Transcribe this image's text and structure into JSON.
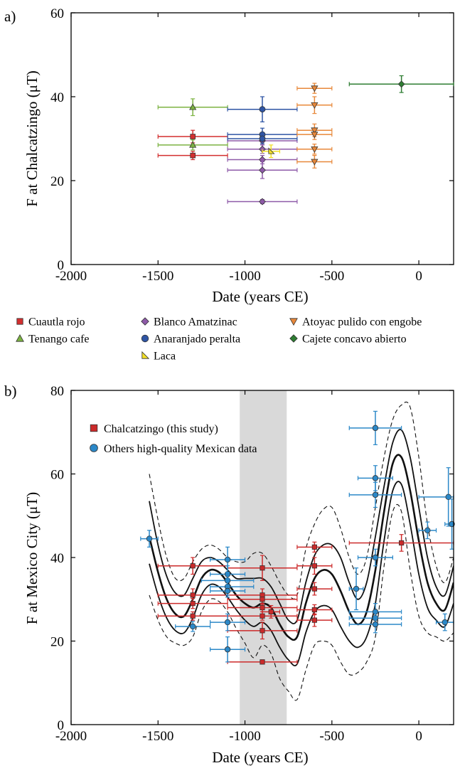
{
  "figure": {
    "panel_a_label": "a)",
    "panel_b_label": "b)"
  },
  "colors": {
    "cuautla": "#d32f2f",
    "tenango": "#7cb342",
    "blanco": "#8e5aa8",
    "anaranjado": "#2f55a4",
    "laca": "#f2e027",
    "atoyac": "#e8883a",
    "cajete": "#2e7d32",
    "chalc_b": "#cc2a2a",
    "others_b": "#2b88c8",
    "band": "#d9d9d9"
  },
  "chart_data": [
    {
      "type": "scatter",
      "xlabel": "Date (years CE)",
      "ylabel": "F at Chalcatzingo (μT)",
      "xlim": [
        -2000,
        200
      ],
      "ylim": [
        0,
        60
      ],
      "xticks": [
        -2000,
        -1500,
        -1000,
        -500,
        0
      ],
      "yticks": [
        0,
        20,
        40,
        60
      ],
      "xtick_labels": [
        "-2000",
        "-1500",
        "-1000",
        "-500",
        "0"
      ],
      "ytick_labels": [
        "0",
        "20",
        "40",
        "60"
      ],
      "legend": [
        {
          "key": "cuautla",
          "label": "Cuautla rojo",
          "marker": "square"
        },
        {
          "key": "tenango",
          "label": "Tenango cafe",
          "marker": "triangle"
        },
        {
          "key": "blanco",
          "label": "Blanco Amatzinac",
          "marker": "diamond"
        },
        {
          "key": "anaranjado",
          "label": "Anaranjado peralta",
          "marker": "circle"
        },
        {
          "key": "laca",
          "label": "Laca",
          "marker": "halftri"
        },
        {
          "key": "atoyac",
          "label": "Atoyac pulido con engobe",
          "marker": "triangle-down"
        },
        {
          "key": "cajete",
          "label": "Cajete concavo abierto",
          "marker": "diamond"
        }
      ],
      "series": [
        {
          "key": "cuautla",
          "name": "Cuautla rojo",
          "marker": "square",
          "points": [
            {
              "x": -1300,
              "xmin": -1500,
              "xmax": -1100,
              "y": 30.5,
              "yerr": 1.5
            },
            {
              "x": -1300,
              "xmin": -1500,
              "xmax": -1100,
              "y": 26.0,
              "yerr": 1.0
            }
          ]
        },
        {
          "key": "tenango",
          "name": "Tenango cafe",
          "marker": "triangle",
          "points": [
            {
              "x": -1300,
              "xmin": -1500,
              "xmax": -1100,
              "y": 37.5,
              "yerr": 2.0
            },
            {
              "x": -1300,
              "xmin": -1500,
              "xmax": -1100,
              "y": 28.5,
              "yerr": 1.2
            }
          ]
        },
        {
          "key": "blanco",
          "name": "Blanco Amatzinac",
          "marker": "diamond",
          "points": [
            {
              "x": -900,
              "xmin": -1100,
              "xmax": -700,
              "y": 29.5,
              "yerr": 1.0
            },
            {
              "x": -900,
              "xmin": -1100,
              "xmax": -700,
              "y": 27.5,
              "yerr": 1.0
            },
            {
              "x": -900,
              "xmin": -1100,
              "xmax": -700,
              "y": 25.0,
              "yerr": 1.0
            },
            {
              "x": -900,
              "xmin": -1100,
              "xmax": -700,
              "y": 22.5,
              "yerr": 2.0
            },
            {
              "x": -900,
              "xmin": -1100,
              "xmax": -700,
              "y": 15.0,
              "yerr": 0.5
            }
          ]
        },
        {
          "key": "anaranjado",
          "name": "Anaranjado peralta",
          "marker": "circle",
          "points": [
            {
              "x": -900,
              "xmin": -1100,
              "xmax": -700,
              "y": 37.0,
              "yerr": 3.0
            },
            {
              "x": -900,
              "xmin": -1100,
              "xmax": -700,
              "y": 31.0,
              "yerr": 1.5
            },
            {
              "x": -900,
              "xmin": -1100,
              "xmax": -700,
              "y": 30.0,
              "yerr": 1.2
            }
          ]
        },
        {
          "key": "laca",
          "name": "Laca",
          "marker": "halftri",
          "points": [
            {
              "x": -850,
              "xmin": -900,
              "xmax": -800,
              "y": 27.0,
              "yerr": 1.5
            }
          ]
        },
        {
          "key": "atoyac",
          "name": "Atoyac pulido con engobe",
          "marker": "triangle-down",
          "points": [
            {
              "x": -600,
              "xmin": -700,
              "xmax": -500,
              "y": 42.0,
              "yerr": 1.2
            },
            {
              "x": -600,
              "xmin": -700,
              "xmax": -500,
              "y": 38.0,
              "yerr": 2.0
            },
            {
              "x": -600,
              "xmin": -700,
              "xmax": -500,
              "y": 32.0,
              "yerr": 1.5
            },
            {
              "x": -600,
              "xmin": -700,
              "xmax": -500,
              "y": 31.0,
              "yerr": 1.2
            },
            {
              "x": -600,
              "xmin": -700,
              "xmax": -500,
              "y": 27.5,
              "yerr": 1.2
            },
            {
              "x": -600,
              "xmin": -700,
              "xmax": -500,
              "y": 24.5,
              "yerr": 1.5
            }
          ]
        },
        {
          "key": "cajete",
          "name": "Cajete concavo abierto",
          "marker": "diamond",
          "points": [
            {
              "x": -100,
              "xmin": -400,
              "xmax": 200,
              "y": 43.0,
              "yerr": 2.0
            }
          ]
        }
      ]
    },
    {
      "type": "scatter",
      "xlabel": "Date (years CE)",
      "ylabel": "F at Mexico City (μT)",
      "xlim": [
        -2000,
        200
      ],
      "ylim": [
        0,
        80
      ],
      "xticks": [
        -2000,
        -1500,
        -1000,
        -500,
        0
      ],
      "yticks": [
        0,
        20,
        40,
        60,
        80
      ],
      "xtick_labels": [
        "-2000",
        "-1500",
        "-1000",
        "-500",
        "0"
      ],
      "ytick_labels": [
        "0",
        "20",
        "40",
        "60",
        "80"
      ],
      "shaded_band": {
        "x0": -1030,
        "x1": -760
      },
      "legend": [
        {
          "key": "chalc_b",
          "label": "Chalcatzingo (this study)",
          "marker": "square"
        },
        {
          "key": "others_b",
          "label": "Others high-quality Mexican data",
          "marker": "circle"
        }
      ],
      "series": [
        {
          "key": "chalc_b",
          "name": "Chalcatzingo (this study)",
          "marker": "square",
          "points": [
            {
              "x": -1300,
              "xmin": -1500,
              "xmax": -1100,
              "y": 38.0,
              "yerr": 2.0
            },
            {
              "x": -1300,
              "xmin": -1500,
              "xmax": -1100,
              "y": 31.0,
              "yerr": 1.5
            },
            {
              "x": -1300,
              "xmin": -1500,
              "xmax": -1100,
              "y": 29.0,
              "yerr": 1.2
            },
            {
              "x": -1300,
              "xmin": -1500,
              "xmax": -1100,
              "y": 26.0,
              "yerr": 1.0
            },
            {
              "x": -900,
              "xmin": -1100,
              "xmax": -700,
              "y": 37.5,
              "yerr": 3.0
            },
            {
              "x": -900,
              "xmin": -1100,
              "xmax": -700,
              "y": 31.0,
              "yerr": 1.5
            },
            {
              "x": -900,
              "xmin": -1100,
              "xmax": -700,
              "y": 30.0,
              "yerr": 1.2
            },
            {
              "x": -900,
              "xmin": -1100,
              "xmax": -700,
              "y": 28.0,
              "yerr": 1.0
            },
            {
              "x": -900,
              "xmin": -1100,
              "xmax": -700,
              "y": 26.0,
              "yerr": 1.0
            },
            {
              "x": -900,
              "xmin": -1100,
              "xmax": -700,
              "y": 22.5,
              "yerr": 2.0
            },
            {
              "x": -900,
              "xmin": -1100,
              "xmax": -700,
              "y": 15.0,
              "yerr": 0.5
            },
            {
              "x": -850,
              "xmin": -900,
              "xmax": -800,
              "y": 27.0,
              "yerr": 1.5
            },
            {
              "x": -600,
              "xmin": -700,
              "xmax": -500,
              "y": 42.5,
              "yerr": 1.2
            },
            {
              "x": -600,
              "xmin": -700,
              "xmax": -500,
              "y": 38.0,
              "yerr": 2.0
            },
            {
              "x": -600,
              "xmin": -700,
              "xmax": -500,
              "y": 32.5,
              "yerr": 1.5
            },
            {
              "x": -600,
              "xmin": -700,
              "xmax": -500,
              "y": 27.5,
              "yerr": 1.2
            },
            {
              "x": -600,
              "xmin": -700,
              "xmax": -500,
              "y": 25.0,
              "yerr": 1.5
            },
            {
              "x": -100,
              "xmin": -400,
              "xmax": 200,
              "y": 43.5,
              "yerr": 2.0
            }
          ]
        },
        {
          "key": "others_b",
          "name": "Others high-quality Mexican data",
          "marker": "circle",
          "points": [
            {
              "x": -1550,
              "xmin": -1600,
              "xmax": -1500,
              "y": 44.5,
              "yerr": 2.0
            },
            {
              "x": -1300,
              "xmin": -1400,
              "xmax": -1200,
              "y": 23.5,
              "yerr": 1.2
            },
            {
              "x": -1100,
              "xmin": -1200,
              "xmax": -1000,
              "y": 39.5,
              "yerr": 3.0
            },
            {
              "x": -1100,
              "xmin": -1200,
              "xmax": -1000,
              "y": 36.0,
              "yerr": 2.0
            },
            {
              "x": -1100,
              "xmin": -1250,
              "xmax": -950,
              "y": 34.5,
              "yerr": 2.0
            },
            {
              "x": -1100,
              "xmin": -1200,
              "xmax": -950,
              "y": 33.0,
              "yerr": 2.0
            },
            {
              "x": -1100,
              "xmin": -1200,
              "xmax": -1000,
              "y": 32.0,
              "yerr": 1.5
            },
            {
              "x": -1100,
              "xmin": -1200,
              "xmax": -1000,
              "y": 24.5,
              "yerr": 2.0
            },
            {
              "x": -1100,
              "xmin": -1200,
              "xmax": -1000,
              "y": 18.0,
              "yerr": 3.0
            },
            {
              "x": -360,
              "xmin": -400,
              "xmax": -320,
              "y": 32.5,
              "yerr": 5.0
            },
            {
              "x": -250,
              "xmin": -400,
              "xmax": -100,
              "y": 71.0,
              "yerr": 4.0
            },
            {
              "x": -250,
              "xmin": -350,
              "xmax": -150,
              "y": 59.0,
              "yerr": 3.0
            },
            {
              "x": -250,
              "xmin": -400,
              "xmax": -100,
              "y": 55.0,
              "yerr": 3.0
            },
            {
              "x": -250,
              "xmin": -350,
              "xmax": -150,
              "y": 40.0,
              "yerr": 2.0
            },
            {
              "x": -250,
              "xmin": -400,
              "xmax": -100,
              "y": 27.0,
              "yerr": 2.0
            },
            {
              "x": -250,
              "xmin": -400,
              "xmax": -100,
              "y": 25.5,
              "yerr": 1.5
            },
            {
              "x": -250,
              "xmin": -400,
              "xmax": -100,
              "y": 24.0,
              "yerr": 2.0
            },
            {
              "x": 50,
              "xmin": 0,
              "xmax": 100,
              "y": 46.5,
              "yerr": 2.0
            },
            {
              "x": 170,
              "xmin": 0,
              "xmax": 200,
              "y": 54.5,
              "yerr": 7.0
            },
            {
              "x": 190,
              "xmin": 150,
              "xmax": 200,
              "y": 48.0,
              "yerr": 6.0
            },
            {
              "x": 150,
              "xmin": 100,
              "xmax": 200,
              "y": 24.5,
              "yerr": 2.0
            }
          ]
        }
      ],
      "curves": {
        "x": [
          -1550,
          -1500,
          -1450,
          -1400,
          -1350,
          -1300,
          -1250,
          -1200,
          -1150,
          -1100,
          -1050,
          -1000,
          -950,
          -900,
          -850,
          -800,
          -750,
          -700,
          -650,
          -600,
          -550,
          -500,
          -450,
          -400,
          -350,
          -300,
          -250,
          -200,
          -150,
          -100,
          -50,
          0,
          50,
          100,
          150,
          200
        ],
        "mean": [
          45,
          36.5,
          30,
          26.5,
          26,
          30,
          35,
          37,
          36.5,
          34,
          31,
          29,
          28,
          29,
          28,
          24,
          21,
          21,
          29,
          35,
          37,
          36,
          32,
          27,
          24,
          27,
          37,
          51,
          62.5,
          64,
          56,
          44,
          34,
          29,
          27.5,
          34
        ],
        "upper": [
          53.5,
          43,
          35.5,
          31.5,
          31,
          35,
          39,
          40,
          39,
          37,
          35,
          35,
          35,
          35,
          33,
          29,
          25,
          25,
          34,
          40.5,
          43,
          43,
          40,
          34,
          30,
          34,
          45,
          57,
          67.5,
          70.5,
          64,
          52,
          40,
          33,
          31,
          38
        ],
        "lower": [
          38.5,
          31,
          25.5,
          22.5,
          22,
          25.5,
          31,
          33.5,
          33,
          30.5,
          27.5,
          25,
          23.5,
          24.5,
          22.5,
          18.5,
          15.5,
          14.5,
          22,
          27,
          28.5,
          27.5,
          23.5,
          20,
          18.5,
          21,
          29,
          44,
          56,
          57.5,
          48,
          36,
          28,
          25,
          23.5,
          29
        ],
        "upper_dashed": [
          60,
          49,
          40,
          35,
          35,
          39,
          42,
          43,
          42,
          40,
          39,
          39,
          41,
          41,
          38,
          34,
          31,
          31,
          42,
          48,
          51.5,
          52,
          47,
          40,
          36,
          40,
          52,
          64,
          73,
          76.5,
          76,
          64,
          48,
          38,
          34,
          40
        ],
        "lower_dashed": [
          31,
          25,
          21,
          19.5,
          19,
          21,
          27,
          30,
          29.5,
          27,
          23,
          19.5,
          16,
          19,
          17,
          11,
          8,
          6,
          13,
          19,
          20,
          19,
          15,
          12,
          12.5,
          15,
          21,
          38,
          51,
          51,
          37,
          26,
          22,
          21,
          20,
          22
        ]
      }
    }
  ]
}
